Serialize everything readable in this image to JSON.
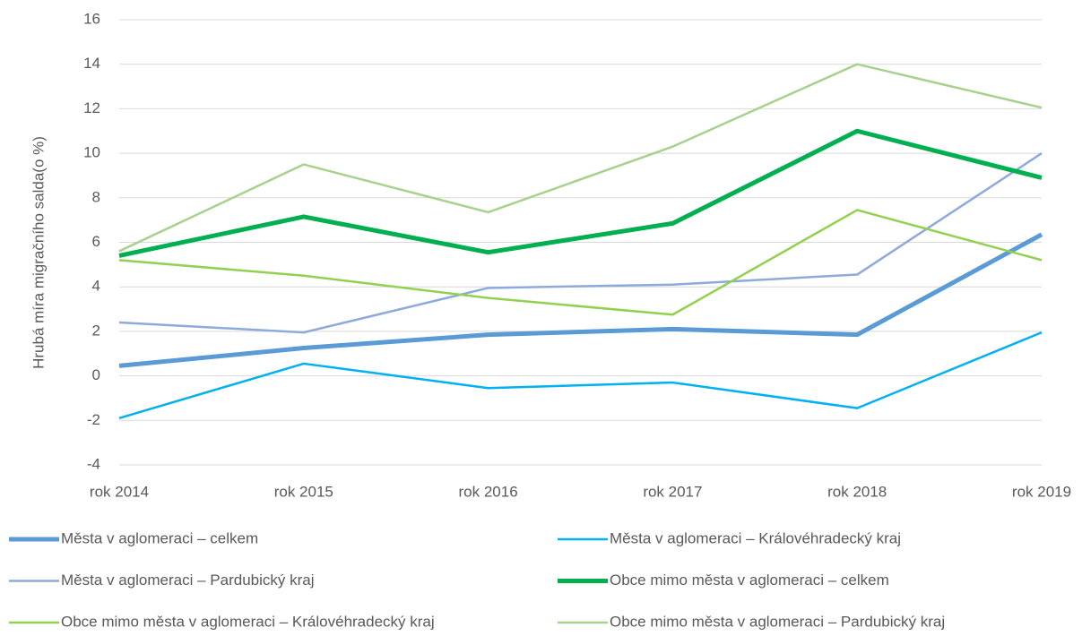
{
  "chart_data": {
    "type": "line",
    "y_label": "Hrubá míra migračního salda(o %)",
    "categories": [
      "rok 2014",
      "rok 2015",
      "rok 2016",
      "rok 2017",
      "rok 2018",
      "rok 2019"
    ],
    "series": [
      {
        "name": "Města v aglomeraci – celkem",
        "color": "#5b9bd5",
        "line_width": 5,
        "values": [
          0.45,
          1.25,
          1.85,
          2.1,
          1.85,
          6.35
        ]
      },
      {
        "name": "Města v aglomeraci – Královéhradecký kraj",
        "color": "#00b0f0",
        "line_width": 2.5,
        "values": [
          -1.9,
          0.55,
          -0.55,
          -0.3,
          -1.45,
          1.95
        ]
      },
      {
        "name": "Města v aglomeraci – Pardubický kraj",
        "color": "#8eaadb",
        "line_width": 2.5,
        "values": [
          2.4,
          1.95,
          3.95,
          4.1,
          4.55,
          10.0
        ]
      },
      {
        "name": "Obce mimo města v aglomeraci – celkem",
        "color": "#00b050",
        "line_width": 5,
        "values": [
          5.4,
          7.15,
          5.55,
          6.85,
          11.0,
          8.9
        ]
      },
      {
        "name": "Obce mimo města v aglomeraci – Královéhradecký kraj",
        "color": "#92d050",
        "line_width": 2.5,
        "values": [
          5.2,
          4.5,
          3.5,
          2.75,
          7.45,
          5.2
        ]
      },
      {
        "name": "Obce mimo města v aglomeraci – Pardubický kraj",
        "color": "#a9d18e",
        "line_width": 2.5,
        "values": [
          5.6,
          9.5,
          7.35,
          10.3,
          14.0,
          12.05
        ]
      }
    ],
    "ylim": [
      -4,
      16
    ],
    "yticks": [
      -4,
      -2,
      0,
      2,
      4,
      6,
      8,
      10,
      12,
      14,
      16
    ],
    "grid": true,
    "legend": "bottom"
  }
}
